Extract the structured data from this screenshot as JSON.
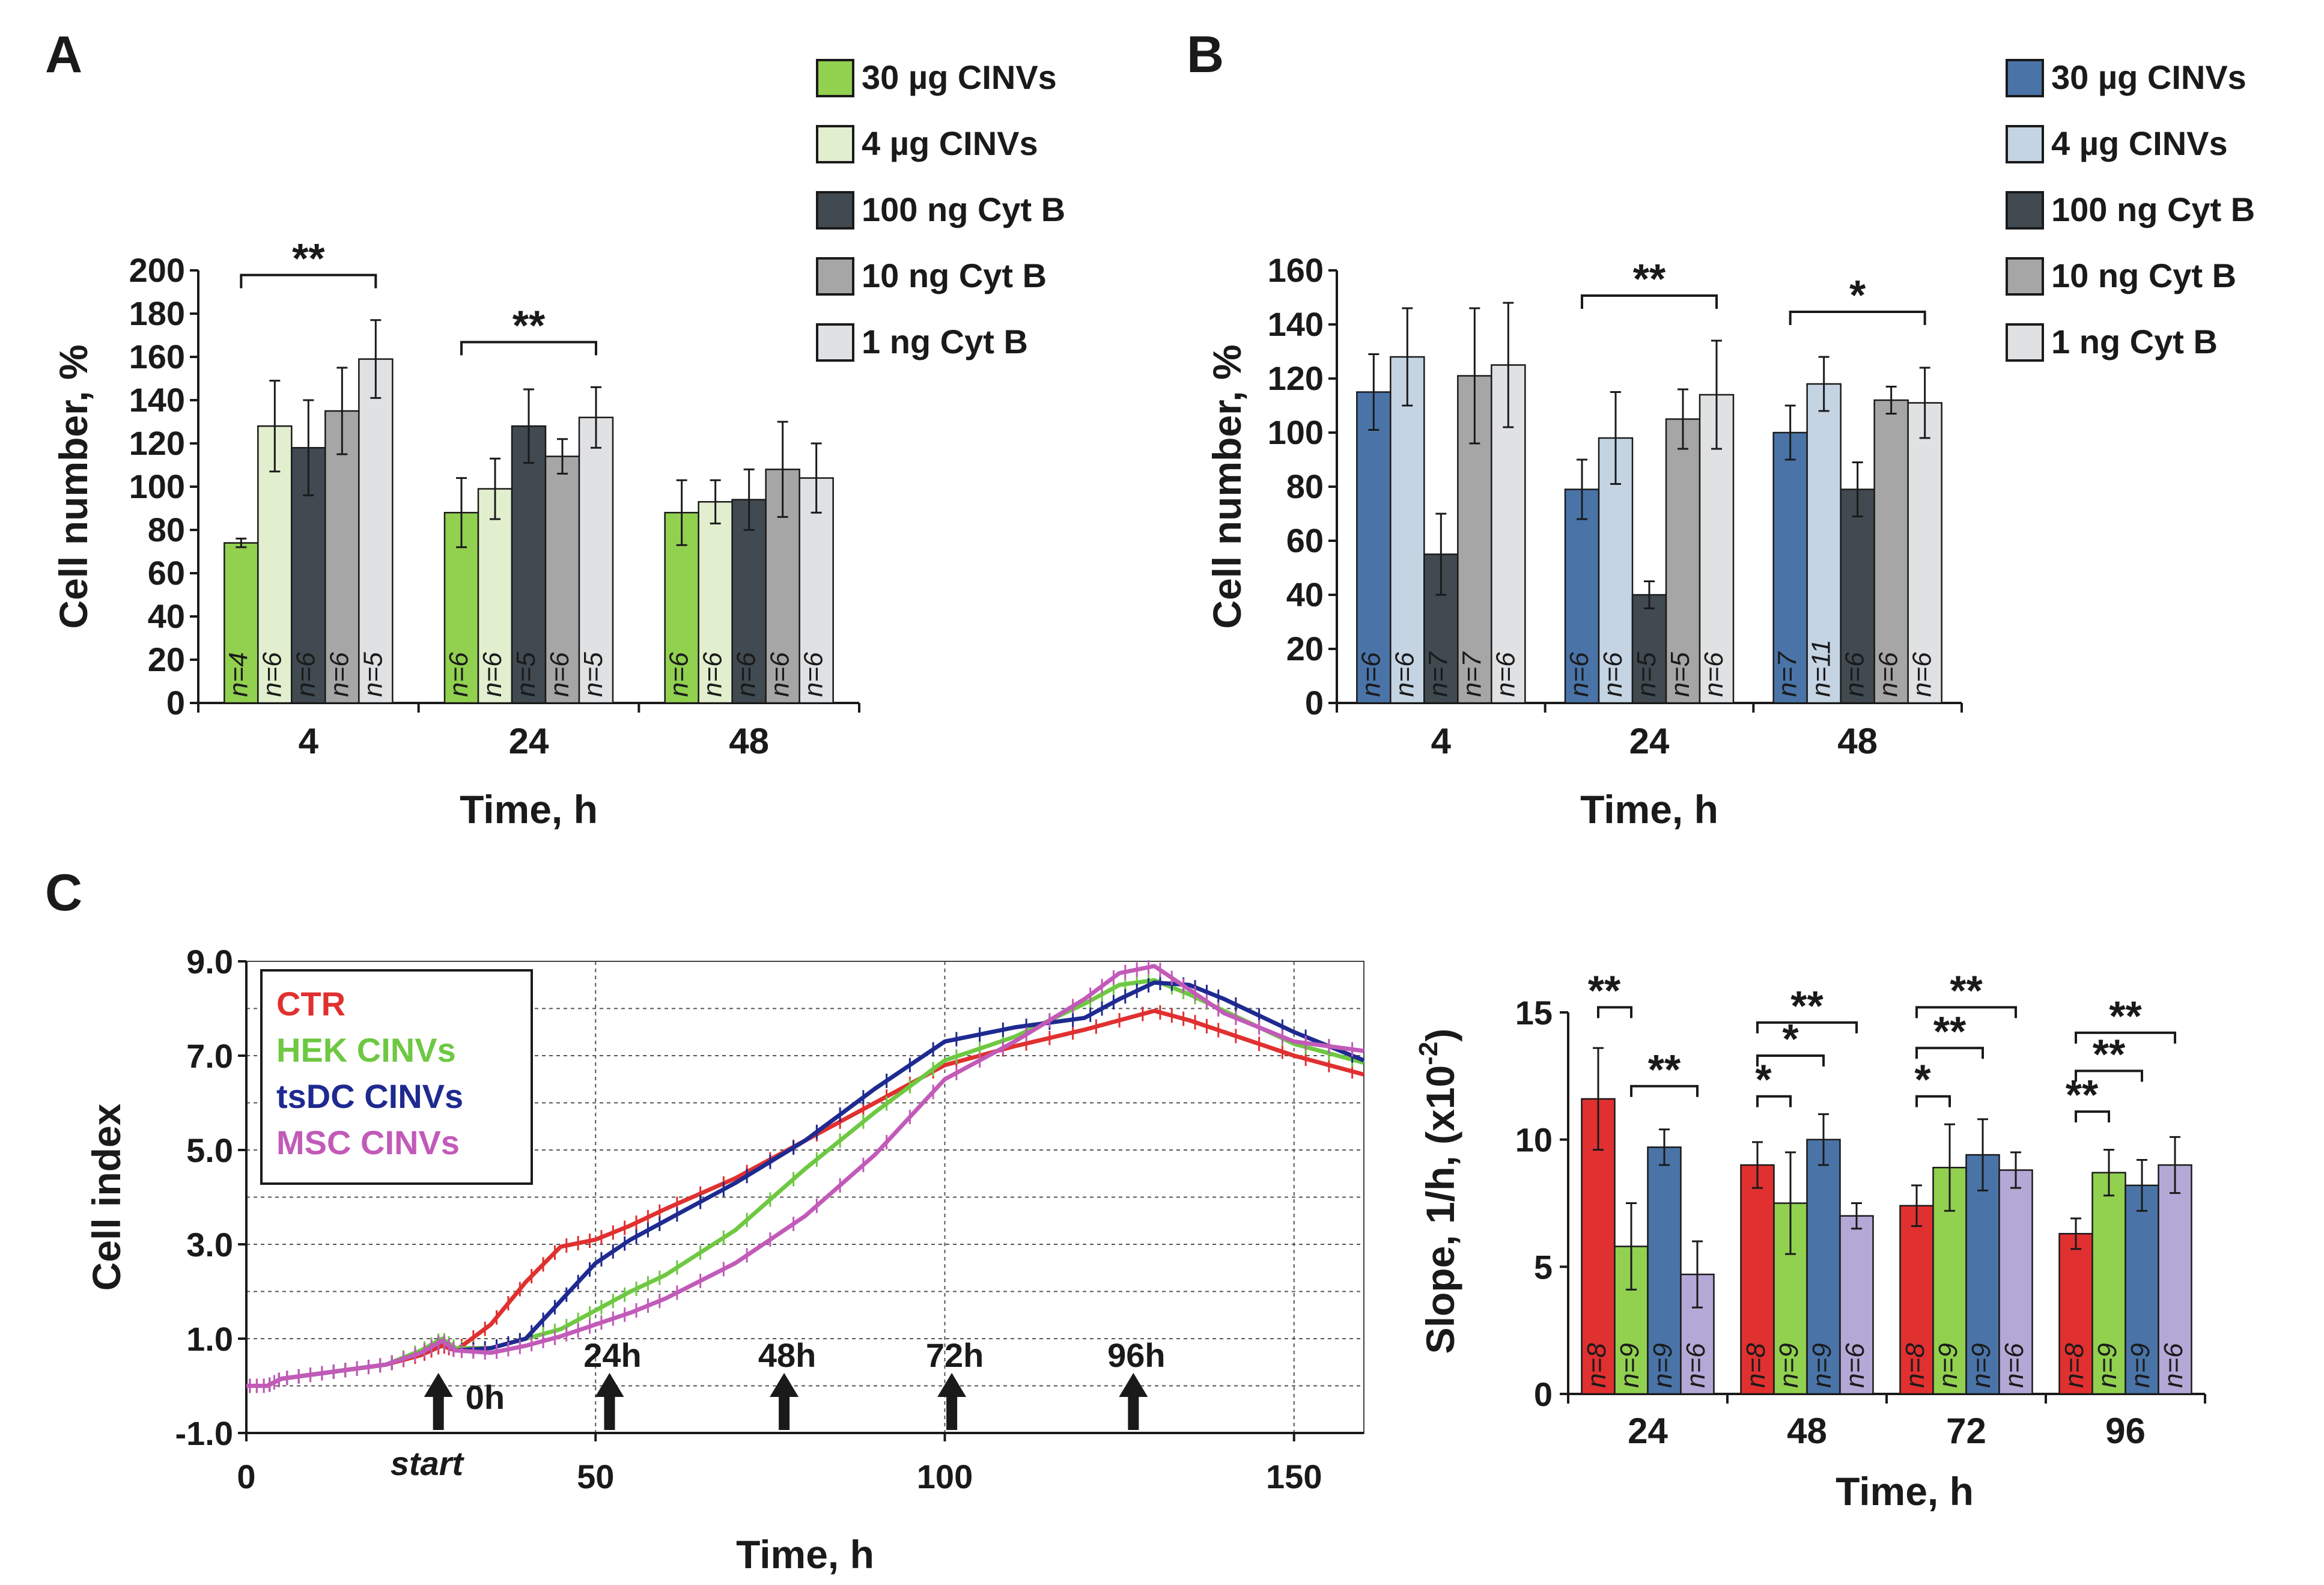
{
  "chart_data": [
    {
      "panel": "A",
      "type": "bar",
      "ylabel": "Cell number, %",
      "xlabel": "Time, h",
      "ylim": [
        0,
        200
      ],
      "yticks": [
        "0",
        "20",
        "40",
        "60",
        "80",
        "100",
        "120",
        "140",
        "160",
        "180",
        "200"
      ],
      "categories": [
        "4",
        "24",
        "48"
      ],
      "series": [
        {
          "name": "30 µg CINVs",
          "color": "#92d050",
          "values": [
            74,
            88,
            88
          ],
          "errors": [
            2,
            16,
            15
          ],
          "n": [
            "n=4",
            "n=6",
            "n=6"
          ]
        },
        {
          "name": "4 µg CINVs",
          "color": "#e2efcf",
          "values": [
            128,
            99,
            93
          ],
          "errors": [
            21,
            14,
            10
          ],
          "n": [
            "n=6",
            "n=6",
            "n=6"
          ]
        },
        {
          "name": "100 ng Cyt B",
          "color": "#404a50",
          "values": [
            118,
            128,
            94
          ],
          "errors": [
            22,
            17,
            14
          ],
          "n": [
            "n=6",
            "n=5",
            "n=6"
          ]
        },
        {
          "name": "10 ng Cyt B",
          "color": "#a6a6a6",
          "values": [
            135,
            114,
            108
          ],
          "errors": [
            20,
            8,
            22
          ],
          "n": [
            "n=6",
            "n=6",
            "n=6"
          ]
        },
        {
          "name": "1 ng Cyt B",
          "color": "#e0e1e3",
          "values": [
            159,
            132,
            104
          ],
          "errors": [
            18,
            14,
            16
          ],
          "n": [
            "n=5",
            "n=5",
            "n=6"
          ]
        }
      ],
      "significance": [
        {
          "category": "4",
          "label": "**"
        },
        {
          "category": "24",
          "label": "**"
        }
      ]
    },
    {
      "panel": "B",
      "type": "bar",
      "ylabel": "Cell number, %",
      "xlabel": "Time, h",
      "ylim": [
        0,
        160
      ],
      "yticks": [
        "0",
        "20",
        "40",
        "60",
        "80",
        "100",
        "120",
        "140",
        "160"
      ],
      "categories": [
        "4",
        "24",
        "48"
      ],
      "series": [
        {
          "name": "30 µg CINVs",
          "color": "#4a74a8",
          "values": [
            115,
            79,
            100
          ],
          "errors": [
            14,
            11,
            10
          ],
          "n": [
            "n=6",
            "n=6",
            "n=7"
          ]
        },
        {
          "name": "4 µg CINVs",
          "color": "#c5d4e3",
          "values": [
            128,
            98,
            118
          ],
          "errors": [
            18,
            17,
            10
          ],
          "n": [
            "n=6",
            "n=6",
            "n=11"
          ]
        },
        {
          "name": "100 ng Cyt B",
          "color": "#404a50",
          "values": [
            55,
            40,
            79
          ],
          "errors": [
            15,
            5,
            10
          ],
          "n": [
            "n=7",
            "n=5",
            "n=6"
          ]
        },
        {
          "name": "10 ng Cyt B",
          "color": "#a6a6a6",
          "values": [
            121,
            105,
            112
          ],
          "errors": [
            25,
            11,
            5
          ],
          "n": [
            "n=7",
            "n=5",
            "n=6"
          ]
        },
        {
          "name": "1 ng Cyt B",
          "color": "#e0e1e3",
          "values": [
            125,
            114,
            111
          ],
          "errors": [
            23,
            20,
            13
          ],
          "n": [
            "n=6",
            "n=6",
            "n=6"
          ]
        }
      ],
      "significance": [
        {
          "category": "24",
          "label": "**"
        },
        {
          "category": "48",
          "label": "*"
        }
      ]
    },
    {
      "panel": "C",
      "type": "line",
      "ylabel": "Cell index",
      "xlabel": "Time, h",
      "xlim": [
        0,
        160
      ],
      "ylim": [
        -1,
        9
      ],
      "xticks": [
        "0",
        "50",
        "100",
        "150"
      ],
      "yticks": [
        "-1.0",
        "1.0",
        "3.0",
        "5.0",
        "7.0",
        "9.0"
      ],
      "series": [
        {
          "name": "CTR",
          "color": "#e03030",
          "x": [
            0,
            3,
            5,
            10,
            15,
            20,
            25,
            28,
            30,
            35,
            40,
            45,
            50,
            55,
            60,
            70,
            80,
            90,
            100,
            110,
            120,
            130,
            135,
            140,
            150,
            160
          ],
          "y": [
            0,
            0,
            0.15,
            0.25,
            0.35,
            0.45,
            0.65,
            0.85,
            0.75,
            1.3,
            2.2,
            2.95,
            3.1,
            3.4,
            3.75,
            4.4,
            5.2,
            6.0,
            6.8,
            7.2,
            7.55,
            7.95,
            7.75,
            7.5,
            7.0,
            6.6
          ]
        },
        {
          "name": "HEK CINVs",
          "color": "#6ec842",
          "x": [
            0,
            3,
            5,
            10,
            15,
            20,
            25,
            28,
            30,
            35,
            40,
            45,
            50,
            55,
            60,
            70,
            80,
            90,
            100,
            110,
            120,
            125,
            130,
            135,
            140,
            150,
            160
          ],
          "y": [
            0,
            0,
            0.15,
            0.25,
            0.35,
            0.45,
            0.75,
            1.0,
            0.8,
            0.8,
            1.0,
            1.2,
            1.6,
            2.0,
            2.35,
            3.3,
            4.6,
            5.8,
            6.9,
            7.4,
            8.1,
            8.5,
            8.6,
            8.3,
            7.95,
            7.25,
            6.85
          ]
        },
        {
          "name": "tsDC CINVs",
          "color": "#1e2a90",
          "x": [
            0,
            3,
            5,
            10,
            15,
            20,
            25,
            28,
            30,
            35,
            40,
            45,
            50,
            55,
            60,
            70,
            80,
            90,
            100,
            110,
            120,
            125,
            130,
            135,
            140,
            150,
            160
          ],
          "y": [
            0,
            0,
            0.15,
            0.25,
            0.35,
            0.45,
            0.7,
            0.95,
            0.75,
            0.8,
            1.0,
            1.8,
            2.6,
            3.1,
            3.5,
            4.3,
            5.2,
            6.3,
            7.3,
            7.6,
            7.8,
            8.2,
            8.55,
            8.5,
            8.2,
            7.5,
            6.9
          ]
        },
        {
          "name": "MSC CINVs",
          "color": "#c25ab8",
          "x": [
            0,
            3,
            5,
            10,
            15,
            20,
            25,
            28,
            30,
            35,
            40,
            45,
            50,
            55,
            60,
            70,
            80,
            90,
            100,
            110,
            120,
            125,
            130,
            135,
            140,
            150,
            160
          ],
          "y": [
            0,
            0,
            0.15,
            0.25,
            0.35,
            0.45,
            0.7,
            0.95,
            0.75,
            0.7,
            0.85,
            1.05,
            1.3,
            1.55,
            1.85,
            2.6,
            3.6,
            4.9,
            6.5,
            7.3,
            8.2,
            8.75,
            8.9,
            8.4,
            7.9,
            7.3,
            7.1
          ]
        }
      ],
      "arrows": [
        {
          "x": 27.5,
          "label": "0h"
        },
        {
          "x": 52,
          "label": "24h"
        },
        {
          "x": 77,
          "label": "48h"
        },
        {
          "x": 101,
          "label": "72h"
        },
        {
          "x": 127,
          "label": "96h"
        }
      ],
      "annotation": "start"
    },
    {
      "panel": "C-right",
      "type": "bar",
      "ylabel": "Slope, 1/h, (x10",
      "ylabel_exponent": "-2",
      "ylabel_suffix": ")",
      "xlabel": "Time, h",
      "ylim": [
        0,
        15
      ],
      "yticks": [
        "0",
        "5",
        "10",
        "15"
      ],
      "categories": [
        "24",
        "48",
        "72",
        "96"
      ],
      "series": [
        {
          "name": "CTR",
          "color": "#e03030",
          "values": [
            11.6,
            9.0,
            7.4,
            6.3
          ],
          "errors": [
            2.0,
            0.9,
            0.8,
            0.6
          ],
          "n": [
            "n=8",
            "n=8",
            "n=8",
            "n=8"
          ]
        },
        {
          "name": "HEK CINVs",
          "color": "#92d050",
          "values": [
            5.8,
            7.5,
            8.9,
            8.7
          ],
          "errors": [
            1.7,
            2.0,
            1.7,
            0.9
          ],
          "n": [
            "n=9",
            "n=9",
            "n=9",
            "n=9"
          ]
        },
        {
          "name": "tsDC CINVs",
          "color": "#4a74a8",
          "values": [
            9.7,
            10.0,
            9.4,
            8.2
          ],
          "errors": [
            0.7,
            1.0,
            1.4,
            1.0
          ],
          "n": [
            "n=9",
            "n=9",
            "n=9",
            "n=9"
          ]
        },
        {
          "name": "MSC CINVs",
          "color": "#b4a8d6",
          "values": [
            4.7,
            7.0,
            8.8,
            9.0
          ],
          "errors": [
            1.3,
            0.5,
            0.7,
            1.1
          ],
          "n": [
            "n=6",
            "n=6",
            "n=6",
            "n=6"
          ]
        }
      ],
      "significance": [
        {
          "category": "24",
          "from": 0,
          "to": 1,
          "label": "**",
          "level": 15.2
        },
        {
          "category": "24",
          "from": 1,
          "to": 3,
          "label": "**",
          "level": 12.1
        },
        {
          "category": "48",
          "from": 0,
          "to": 1,
          "label": "*",
          "level": 11.7
        },
        {
          "category": "48",
          "from": 0,
          "to": 2,
          "label": "*",
          "level": 13.3
        },
        {
          "category": "48",
          "from": 0,
          "to": 3,
          "label": "**",
          "level": 14.6
        },
        {
          "category": "72",
          "from": 0,
          "to": 1,
          "label": "*",
          "level": 11.7
        },
        {
          "category": "72",
          "from": 0,
          "to": 2,
          "label": "**",
          "level": 13.6
        },
        {
          "category": "72",
          "from": 0,
          "to": 3,
          "label": "**",
          "level": 15.2
        },
        {
          "category": "96",
          "from": 0,
          "to": 1,
          "label": "**",
          "level": 11.1
        },
        {
          "category": "96",
          "from": 0,
          "to": 2,
          "label": "**",
          "level": 12.7
        },
        {
          "category": "96",
          "from": 0,
          "to": 3,
          "label": "**",
          "level": 14.2
        }
      ]
    }
  ]
}
